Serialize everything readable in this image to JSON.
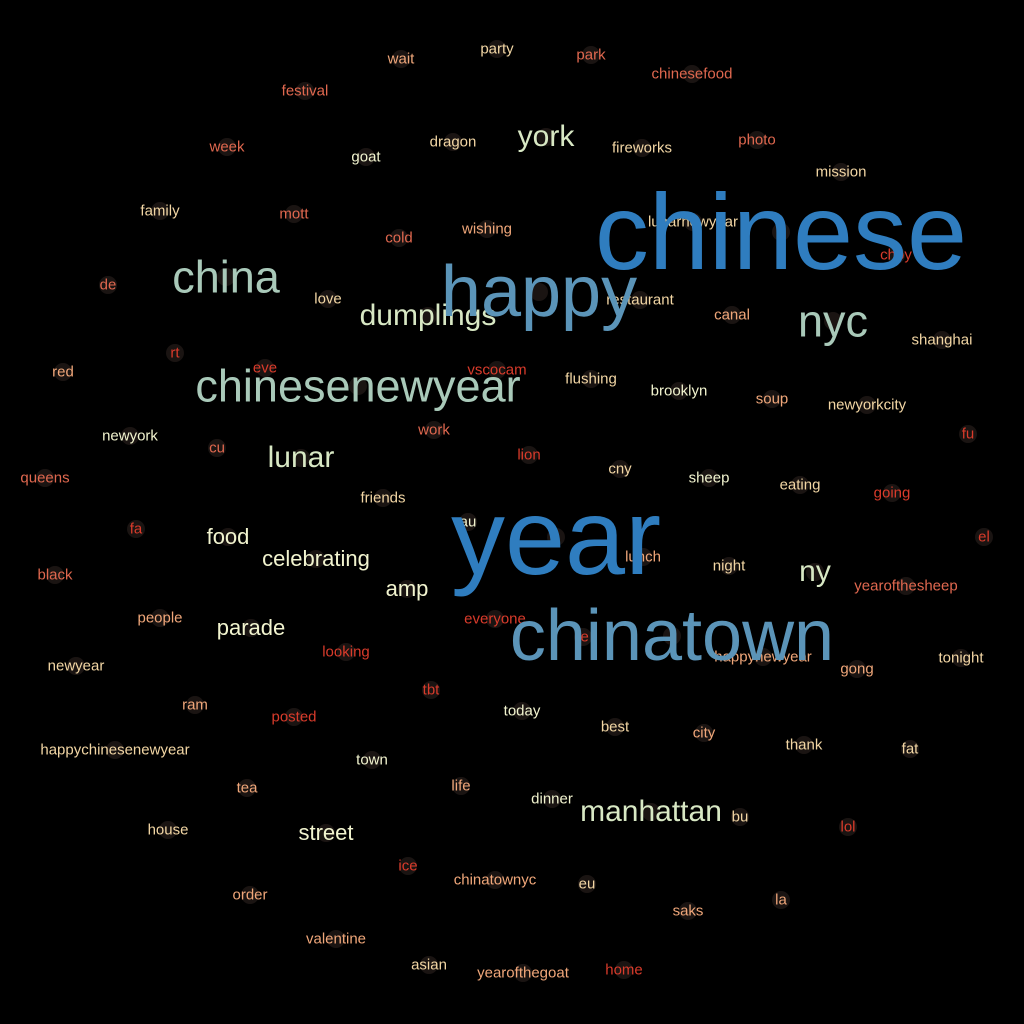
{
  "colors": {
    "background": "#000000",
    "dot": "#1a1412",
    "blue": "#2f7dbf",
    "steel": "#5b94b8",
    "sage": "#a9c9b9",
    "pale": "#d8e8c4",
    "cream": "#f2f4cf",
    "tan": "#f2d6a4",
    "peach": "#f0a77a",
    "salmon": "#e0684f",
    "red": "#d93b2b"
  },
  "words": [
    {
      "text": "chinese",
      "tier": "blue-xl"
    },
    {
      "text": "year",
      "tier": "blue-xl"
    },
    {
      "text": "chinatown",
      "tier": "steel-l"
    },
    {
      "text": "happy",
      "tier": "steel-l"
    },
    {
      "text": "chinesenewyear",
      "tier": "sage-m"
    },
    {
      "text": "china",
      "tier": "sage-m"
    },
    {
      "text": "nyc",
      "tier": "sage-m"
    },
    {
      "text": "manhattan",
      "tier": "pale-s"
    },
    {
      "text": "york",
      "tier": "pale-s"
    },
    {
      "text": "dumplings",
      "tier": "pale-s"
    },
    {
      "text": "lunar",
      "tier": "pale-s"
    },
    {
      "text": "ny",
      "tier": "pale-s"
    },
    {
      "text": "celebrating",
      "tier": "cream-s"
    },
    {
      "text": "food",
      "tier": "cream-s"
    },
    {
      "text": "parade",
      "tier": "cream-s"
    },
    {
      "text": "street",
      "tier": "cream-s"
    },
    {
      "text": "amp",
      "tier": "cream-s"
    },
    {
      "text": "party",
      "tier": "tan"
    },
    {
      "text": "wait",
      "tier": "peach"
    },
    {
      "text": "park",
      "tier": "salmon"
    },
    {
      "text": "chinesefood",
      "tier": "salmon"
    },
    {
      "text": "festival",
      "tier": "salmon"
    },
    {
      "text": "week",
      "tier": "salmon"
    },
    {
      "text": "goat",
      "tier": "cream"
    },
    {
      "text": "dragon",
      "tier": "tan"
    },
    {
      "text": "fireworks",
      "tier": "tan"
    },
    {
      "text": "photo",
      "tier": "salmon"
    },
    {
      "text": "mission",
      "tier": "tan"
    },
    {
      "text": "family",
      "tier": "tan"
    },
    {
      "text": "mott",
      "tier": "salmon"
    },
    {
      "text": "cold",
      "tier": "salmon"
    },
    {
      "text": "wishing",
      "tier": "peach"
    },
    {
      "text": "lunarnewyear",
      "tier": "tan"
    },
    {
      "text": "choy",
      "tier": "red"
    },
    {
      "text": "de",
      "tier": "salmon"
    },
    {
      "text": "love",
      "tier": "tan"
    },
    {
      "text": "restaurant",
      "tier": "tan"
    },
    {
      "text": "canal",
      "tier": "peach"
    },
    {
      "text": "shanghai",
      "tier": "tan"
    },
    {
      "text": "rt",
      "tier": "red"
    },
    {
      "text": "red",
      "tier": "peach"
    },
    {
      "text": "eve",
      "tier": "red"
    },
    {
      "text": "vscocam",
      "tier": "red"
    },
    {
      "text": "flushing",
      "tier": "tan"
    },
    {
      "text": "brooklyn",
      "tier": "cream"
    },
    {
      "text": "soup",
      "tier": "peach"
    },
    {
      "text": "newyorkcity",
      "tier": "tan"
    },
    {
      "text": "newyork",
      "tier": "cream"
    },
    {
      "text": "cu",
      "tier": "salmon"
    },
    {
      "text": "work",
      "tier": "salmon"
    },
    {
      "text": "lion",
      "tier": "red"
    },
    {
      "text": "fu",
      "tier": "red"
    },
    {
      "text": "queens",
      "tier": "salmon"
    },
    {
      "text": "friends",
      "tier": "tan"
    },
    {
      "text": "cny",
      "tier": "tan"
    },
    {
      "text": "sheep",
      "tier": "cream"
    },
    {
      "text": "eating",
      "tier": "tan"
    },
    {
      "text": "going",
      "tier": "red"
    },
    {
      "text": "fa",
      "tier": "red"
    },
    {
      "text": "au",
      "tier": "cream"
    },
    {
      "text": "lunch",
      "tier": "peach"
    },
    {
      "text": "night",
      "tier": "tan"
    },
    {
      "text": "el",
      "tier": "red"
    },
    {
      "text": "black",
      "tier": "salmon"
    },
    {
      "text": "yearofthesheep",
      "tier": "salmon"
    },
    {
      "text": "people",
      "tier": "peach"
    },
    {
      "text": "everyone",
      "tier": "red"
    },
    {
      "text": "le",
      "tier": "red"
    },
    {
      "text": "looking",
      "tier": "red"
    },
    {
      "text": "happynewyear",
      "tier": "peach"
    },
    {
      "text": "gong",
      "tier": "peach"
    },
    {
      "text": "tonight",
      "tier": "tan"
    },
    {
      "text": "newyear",
      "tier": "tan"
    },
    {
      "text": "tbt",
      "tier": "red"
    },
    {
      "text": "ram",
      "tier": "peach"
    },
    {
      "text": "posted",
      "tier": "red"
    },
    {
      "text": "today",
      "tier": "cream"
    },
    {
      "text": "best",
      "tier": "tan"
    },
    {
      "text": "city",
      "tier": "peach"
    },
    {
      "text": "thank",
      "tier": "tan"
    },
    {
      "text": "fat",
      "tier": "tan"
    },
    {
      "text": "happychinesenewyear",
      "tier": "tan"
    },
    {
      "text": "town",
      "tier": "cream"
    },
    {
      "text": "tea",
      "tier": "peach"
    },
    {
      "text": "life",
      "tier": "peach"
    },
    {
      "text": "dinner",
      "tier": "cream"
    },
    {
      "text": "bu",
      "tier": "tan"
    },
    {
      "text": "lol",
      "tier": "red"
    },
    {
      "text": "house",
      "tier": "tan"
    },
    {
      "text": "ice",
      "tier": "red"
    },
    {
      "text": "chinatownyc",
      "tier": "peach"
    },
    {
      "text": "eu",
      "tier": "tan"
    },
    {
      "text": "order",
      "tier": "peach"
    },
    {
      "text": "la",
      "tier": "peach"
    },
    {
      "text": "saks",
      "tier": "peach"
    },
    {
      "text": "valentine",
      "tier": "peach"
    },
    {
      "text": "asian",
      "tier": "tan"
    },
    {
      "text": "yearofthegoat",
      "tier": "peach"
    },
    {
      "text": "home",
      "tier": "red"
    }
  ]
}
